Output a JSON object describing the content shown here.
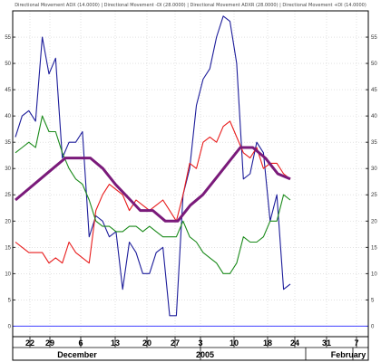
{
  "chart_data": {
    "type": "line",
    "title": "Directional Movement ADX (14.0000) | Directional Movement -DI (28.0000) | Directional Movement ADXR (28.0000) | Directional Movement +DI (14.0000)",
    "ylim": [
      -2,
      60
    ],
    "yticks": [
      0,
      5,
      10,
      15,
      20,
      25,
      30,
      35,
      40,
      45,
      50,
      55
    ],
    "grid": true,
    "x_tick_labels": [
      "22",
      "29",
      "6",
      "13",
      "20",
      "27",
      "3",
      "10",
      "18",
      "24",
      "31",
      "7"
    ],
    "month_labels": [
      "December",
      "2005",
      "January",
      "February"
    ],
    "reference_line": 0,
    "colors": {
      "series1": "#1c1c9a",
      "series2": "#e81c1c",
      "series3": "#1a8a1a",
      "series4": "#7a1a7a",
      "reference": "#4040ff"
    },
    "series": [
      {
        "key": "series1",
        "values": [
          36,
          40,
          41,
          39,
          55,
          48,
          51,
          32,
          35,
          35,
          37,
          17,
          21,
          20,
          17,
          18,
          7,
          16,
          14,
          10,
          10,
          14,
          15,
          2,
          2,
          25,
          30,
          42,
          47,
          49,
          55,
          59,
          58,
          50,
          28,
          29,
          35,
          33,
          20,
          25,
          7,
          8
        ]
      },
      {
        "key": "series2",
        "values": [
          16,
          15,
          14,
          14,
          14,
          12,
          13,
          12,
          16,
          14,
          13,
          12,
          22,
          25,
          27,
          26,
          25,
          22,
          24,
          23,
          22,
          23,
          24,
          22,
          20,
          25,
          31,
          30,
          35,
          36,
          35,
          38,
          39,
          36,
          33,
          32,
          34,
          30,
          31,
          31,
          29,
          28
        ]
      },
      {
        "key": "series3",
        "values": [
          33,
          34,
          35,
          34,
          40,
          37,
          37,
          33,
          30,
          28,
          27,
          24,
          20,
          19,
          19,
          18,
          18,
          19,
          19,
          18,
          19,
          18,
          17,
          17,
          17,
          20,
          17,
          16,
          14,
          13,
          12,
          10,
          10,
          12,
          17,
          16,
          16,
          17,
          20,
          20,
          25,
          24
        ]
      },
      {
        "key": "series4",
        "values": [
          24,
          26,
          28,
          30,
          32,
          32,
          32,
          30,
          27,
          24.5,
          22,
          22,
          20,
          20,
          23,
          25,
          28,
          31,
          34,
          34,
          32,
          29,
          28
        ]
      }
    ]
  }
}
